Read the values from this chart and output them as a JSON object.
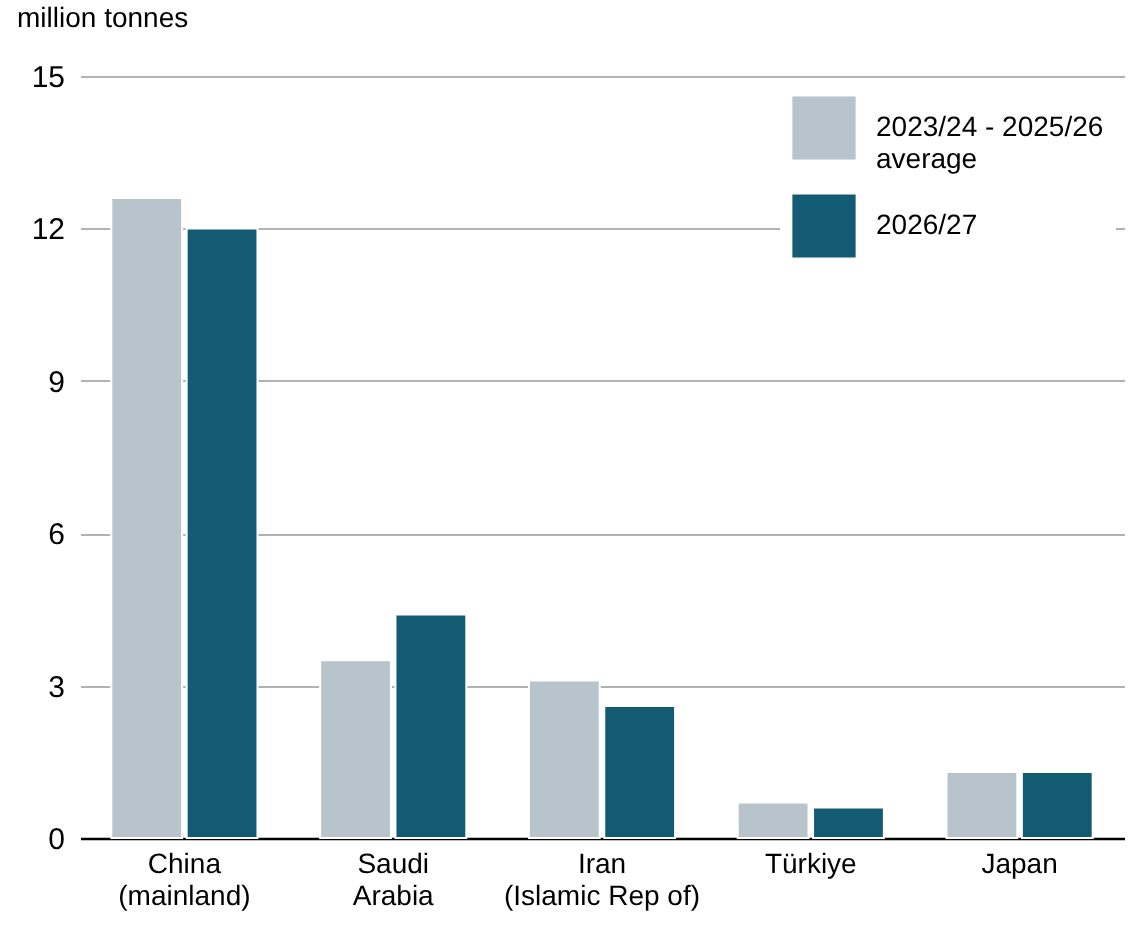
{
  "chart_data": {
    "type": "bar",
    "ylabel": "million tonnes",
    "categories": [
      "China\n(mainland)",
      "Saudi\nArabia",
      "Iran\n(Islamic Rep of)",
      "Türkiye",
      "Japan"
    ],
    "series": [
      {
        "name": "2023/24 - 2025/26\naverage",
        "color": "#b8c4cc",
        "values": [
          12.6,
          3.5,
          3.1,
          0.7,
          1.3
        ]
      },
      {
        "name": "2026/27",
        "color": "#135a73",
        "values": [
          12.0,
          4.4,
          2.6,
          0.6,
          1.3
        ]
      }
    ],
    "ylim": [
      0,
      15
    ],
    "yticks": [
      0,
      3,
      6,
      9,
      12,
      15
    ],
    "grid": "y",
    "legend": "top right"
  }
}
